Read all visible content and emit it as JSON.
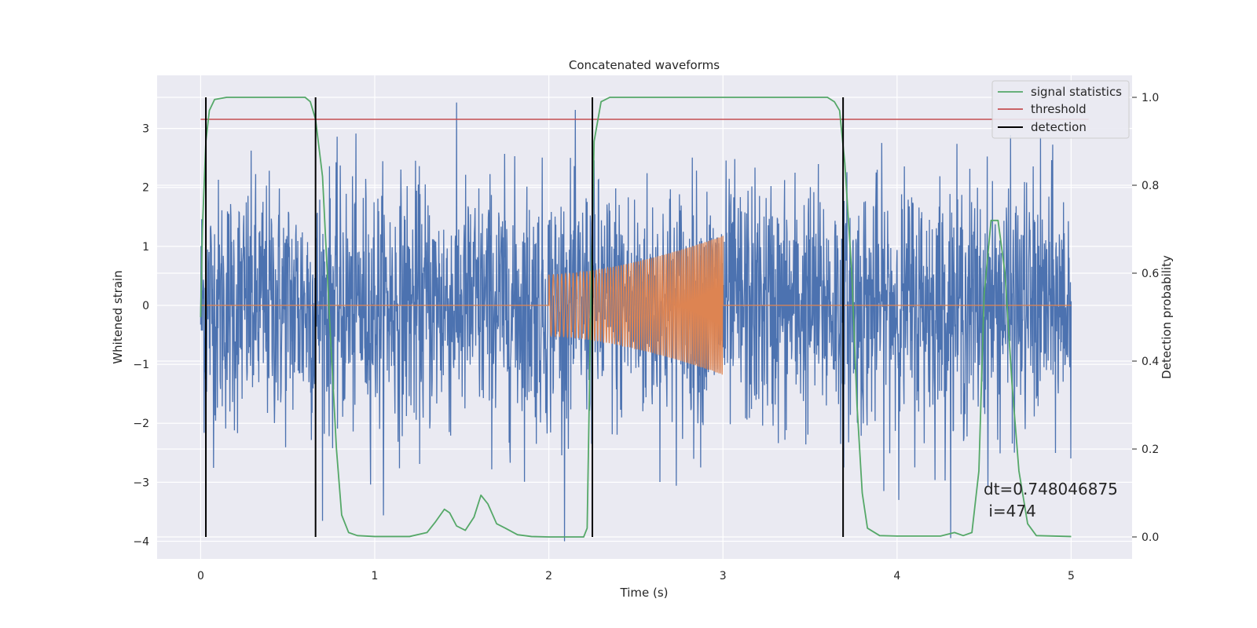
{
  "chart_data": {
    "type": "line",
    "title": "Concatenated waveforms",
    "xlabel": "Time (s)",
    "ylabel_left": "Whitened strain",
    "ylabel_right": "Detection probability",
    "xlim": [
      -0.25,
      5.35
    ],
    "ylim_left": [
      -4.3,
      3.9
    ],
    "ylim_right": [
      -0.05,
      1.05
    ],
    "xticks": [
      0,
      1,
      2,
      3,
      4,
      5
    ],
    "xtick_labels": [
      "0",
      "1",
      "2",
      "3",
      "4",
      "5"
    ],
    "yticks_left": [
      3,
      2,
      1,
      0,
      -1,
      -2,
      -3,
      -4
    ],
    "ytick_labels_left": [
      "3",
      "2",
      "1",
      "0",
      "−1",
      "−2",
      "−3",
      "−4"
    ],
    "yticks_right": [
      1.0,
      0.8,
      0.6,
      0.4,
      0.2,
      0.0
    ],
    "ytick_labels_right": [
      "1.0",
      "0.8",
      "0.6",
      "0.4",
      "0.2",
      "0.0"
    ],
    "grid": true,
    "legend_position": "top-right",
    "legend": [
      {
        "label": "signal statistics",
        "color": "#55a868"
      },
      {
        "label": "threshold",
        "color": "#c44e52"
      },
      {
        "label": "detection",
        "color": "#000000"
      }
    ],
    "series": [
      {
        "kind": "noise",
        "axis": "left",
        "color": "#4c72b0",
        "x_range": [
          0,
          5
        ],
        "approx_amplitude": 3.5
      },
      {
        "kind": "chirp",
        "axis": "left",
        "color": "#dd8452",
        "x_range": [
          0,
          5
        ],
        "active_range": [
          2,
          3
        ],
        "amplitude_start": 0.52,
        "amplitude_end": 1.18
      },
      {
        "name": "signal statistics",
        "axis": "right",
        "color": "#55a868",
        "points": [
          [
            0.0,
            0.5
          ],
          [
            0.01,
            0.7
          ],
          [
            0.03,
            0.9
          ],
          [
            0.05,
            0.97
          ],
          [
            0.08,
            0.995
          ],
          [
            0.15,
            1.0
          ],
          [
            0.6,
            1.0
          ],
          [
            0.63,
            0.99
          ],
          [
            0.66,
            0.95
          ],
          [
            0.7,
            0.82
          ],
          [
            0.74,
            0.5
          ],
          [
            0.78,
            0.2
          ],
          [
            0.81,
            0.05
          ],
          [
            0.85,
            0.01
          ],
          [
            0.9,
            0.003
          ],
          [
            1.0,
            0.001
          ],
          [
            1.2,
            0.001
          ],
          [
            1.3,
            0.01
          ],
          [
            1.35,
            0.035
          ],
          [
            1.4,
            0.063
          ],
          [
            1.43,
            0.055
          ],
          [
            1.47,
            0.025
          ],
          [
            1.52,
            0.015
          ],
          [
            1.57,
            0.045
          ],
          [
            1.61,
            0.095
          ],
          [
            1.65,
            0.075
          ],
          [
            1.7,
            0.03
          ],
          [
            1.75,
            0.02
          ],
          [
            1.82,
            0.005
          ],
          [
            1.9,
            0.001
          ],
          [
            2.0,
            0.0
          ],
          [
            2.2,
            0.0
          ],
          [
            2.22,
            0.02
          ],
          [
            2.24,
            0.5
          ],
          [
            2.26,
            0.9
          ],
          [
            2.3,
            0.99
          ],
          [
            2.35,
            1.0
          ],
          [
            3.6,
            1.0
          ],
          [
            3.64,
            0.99
          ],
          [
            3.67,
            0.97
          ],
          [
            3.7,
            0.85
          ],
          [
            3.74,
            0.6
          ],
          [
            3.77,
            0.3
          ],
          [
            3.8,
            0.1
          ],
          [
            3.83,
            0.02
          ],
          [
            3.9,
            0.003
          ],
          [
            4.0,
            0.002
          ],
          [
            4.25,
            0.002
          ],
          [
            4.33,
            0.01
          ],
          [
            4.38,
            0.003
          ],
          [
            4.43,
            0.01
          ],
          [
            4.47,
            0.15
          ],
          [
            4.5,
            0.55
          ],
          [
            4.54,
            0.72
          ],
          [
            4.58,
            0.72
          ],
          [
            4.62,
            0.6
          ],
          [
            4.66,
            0.35
          ],
          [
            4.7,
            0.15
          ],
          [
            4.75,
            0.03
          ],
          [
            4.8,
            0.003
          ],
          [
            5.0,
            0.001
          ]
        ]
      },
      {
        "name": "threshold",
        "axis": "right",
        "color": "#c44e52",
        "x_range": [
          0,
          5.1
        ],
        "value": 0.95
      }
    ],
    "detections": [
      0.03,
      0.66,
      2.25,
      3.69
    ],
    "annotation": {
      "line1": "dt=0.748046875",
      "line2": " i=474"
    }
  }
}
